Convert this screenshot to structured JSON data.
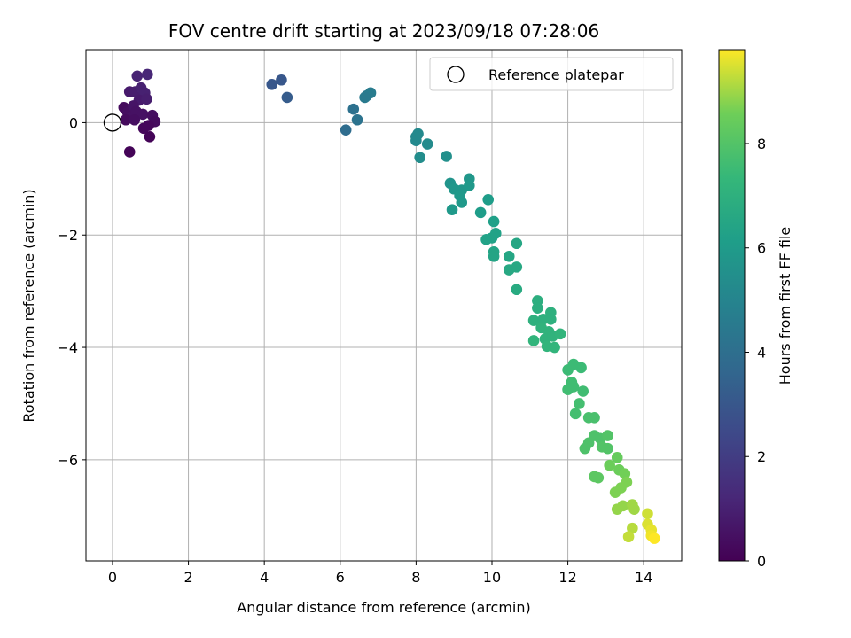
{
  "chart_data": {
    "type": "scatter",
    "title": "FOV centre drift starting at 2023/09/18 07:28:06",
    "xlabel": "Angular distance from reference (arcmin)",
    "ylabel": "Rotation from reference (arcmin)",
    "xlim": [
      -0.7,
      15
    ],
    "ylim": [
      -7.8,
      1.3
    ],
    "xticks": [
      0,
      2,
      4,
      6,
      8,
      10,
      12,
      14
    ],
    "yticks": [
      0,
      -2,
      -4,
      -6
    ],
    "grid": true,
    "legend": {
      "placement": "top-right",
      "entries": [
        "Reference platepar"
      ]
    },
    "reference_point": {
      "x": 0,
      "y": 0
    },
    "colorbar": {
      "label": "Hours from first FF file",
      "range": [
        0,
        9.8
      ],
      "ticks": [
        0,
        2,
        4,
        6,
        8
      ],
      "colormap": "viridis"
    },
    "points": [
      {
        "x": 0.3,
        "y": 0.27,
        "h": 0.3
      },
      {
        "x": 0.4,
        "y": 0.18,
        "h": 0.4
      },
      {
        "x": 0.5,
        "y": 0.1,
        "h": 0.5
      },
      {
        "x": 0.35,
        "y": 0.05,
        "h": 0.3
      },
      {
        "x": 0.45,
        "y": 0.55,
        "h": 0.8
      },
      {
        "x": 0.65,
        "y": 0.83,
        "h": 1.1
      },
      {
        "x": 0.92,
        "y": 0.86,
        "h": 1.2
      },
      {
        "x": 0.6,
        "y": 0.55,
        "h": 0.9
      },
      {
        "x": 0.75,
        "y": 0.62,
        "h": 1.0
      },
      {
        "x": 0.85,
        "y": 0.53,
        "h": 1.0
      },
      {
        "x": 0.7,
        "y": 0.4,
        "h": 0.8
      },
      {
        "x": 0.55,
        "y": 0.3,
        "h": 0.6
      },
      {
        "x": 0.9,
        "y": 0.42,
        "h": 0.9
      },
      {
        "x": 0.62,
        "y": 0.2,
        "h": 0.5
      },
      {
        "x": 0.8,
        "y": 0.15,
        "h": 0.5
      },
      {
        "x": 1.05,
        "y": 0.13,
        "h": 0.4
      },
      {
        "x": 1.12,
        "y": 0.02,
        "h": 0.3
      },
      {
        "x": 0.95,
        "y": -0.05,
        "h": 0.2
      },
      {
        "x": 0.82,
        "y": -0.1,
        "h": 0.2
      },
      {
        "x": 0.98,
        "y": -0.25,
        "h": 0.1
      },
      {
        "x": 0.45,
        "y": -0.52,
        "h": 0.1
      },
      {
        "x": 0.58,
        "y": 0.05,
        "h": 0.4
      },
      {
        "x": 4.2,
        "y": 0.68,
        "h": 3.0
      },
      {
        "x": 4.45,
        "y": 0.76,
        "h": 3.0
      },
      {
        "x": 4.6,
        "y": 0.45,
        "h": 3.2
      },
      {
        "x": 6.15,
        "y": -0.13,
        "h": 3.9
      },
      {
        "x": 6.35,
        "y": 0.24,
        "h": 4.1
      },
      {
        "x": 6.45,
        "y": 0.05,
        "h": 4.2
      },
      {
        "x": 6.7,
        "y": 0.48,
        "h": 4.5
      },
      {
        "x": 6.8,
        "y": 0.53,
        "h": 4.6
      },
      {
        "x": 6.65,
        "y": 0.45,
        "h": 4.5
      },
      {
        "x": 8.0,
        "y": -0.25,
        "h": 5.1
      },
      {
        "x": 8.05,
        "y": -0.2,
        "h": 5.2
      },
      {
        "x": 8.0,
        "y": -0.32,
        "h": 5.2
      },
      {
        "x": 8.3,
        "y": -0.38,
        "h": 5.3
      },
      {
        "x": 8.1,
        "y": -0.62,
        "h": 5.4
      },
      {
        "x": 8.8,
        "y": -0.6,
        "h": 5.5
      },
      {
        "x": 8.9,
        "y": -1.08,
        "h": 5.7
      },
      {
        "x": 9.0,
        "y": -1.18,
        "h": 5.8
      },
      {
        "x": 9.2,
        "y": -1.2,
        "h": 5.8
      },
      {
        "x": 9.4,
        "y": -1.0,
        "h": 5.8
      },
      {
        "x": 9.4,
        "y": -1.12,
        "h": 5.9
      },
      {
        "x": 9.2,
        "y": -1.42,
        "h": 5.9
      },
      {
        "x": 8.95,
        "y": -1.55,
        "h": 5.9
      },
      {
        "x": 9.15,
        "y": -1.3,
        "h": 5.9
      },
      {
        "x": 9.9,
        "y": -1.37,
        "h": 6.1
      },
      {
        "x": 9.7,
        "y": -1.6,
        "h": 6.1
      },
      {
        "x": 10.05,
        "y": -1.76,
        "h": 6.2
      },
      {
        "x": 10.0,
        "y": -2.05,
        "h": 6.3
      },
      {
        "x": 9.85,
        "y": -2.08,
        "h": 6.3
      },
      {
        "x": 10.1,
        "y": -1.97,
        "h": 6.3
      },
      {
        "x": 10.05,
        "y": -2.3,
        "h": 6.4
      },
      {
        "x": 10.05,
        "y": -2.38,
        "h": 6.4
      },
      {
        "x": 10.45,
        "y": -2.38,
        "h": 6.5
      },
      {
        "x": 10.65,
        "y": -2.15,
        "h": 6.5
      },
      {
        "x": 10.45,
        "y": -2.62,
        "h": 6.6
      },
      {
        "x": 10.65,
        "y": -2.57,
        "h": 6.6
      },
      {
        "x": 10.65,
        "y": -2.97,
        "h": 6.7
      },
      {
        "x": 11.2,
        "y": -3.17,
        "h": 6.9
      },
      {
        "x": 11.2,
        "y": -3.3,
        "h": 6.9
      },
      {
        "x": 11.55,
        "y": -3.38,
        "h": 7.0
      },
      {
        "x": 11.1,
        "y": -3.52,
        "h": 7.0
      },
      {
        "x": 11.35,
        "y": -3.5,
        "h": 7.0
      },
      {
        "x": 11.55,
        "y": -3.5,
        "h": 7.0
      },
      {
        "x": 11.3,
        "y": -3.65,
        "h": 7.1
      },
      {
        "x": 11.5,
        "y": -3.72,
        "h": 7.1
      },
      {
        "x": 11.4,
        "y": -3.85,
        "h": 7.1
      },
      {
        "x": 11.6,
        "y": -3.8,
        "h": 7.1
      },
      {
        "x": 11.8,
        "y": -3.76,
        "h": 7.2
      },
      {
        "x": 11.1,
        "y": -3.88,
        "h": 7.2
      },
      {
        "x": 11.45,
        "y": -3.98,
        "h": 7.2
      },
      {
        "x": 11.65,
        "y": -4.0,
        "h": 7.2
      },
      {
        "x": 12.0,
        "y": -4.4,
        "h": 7.5
      },
      {
        "x": 12.15,
        "y": -4.3,
        "h": 7.5
      },
      {
        "x": 12.35,
        "y": -4.36,
        "h": 7.5
      },
      {
        "x": 12.1,
        "y": -4.62,
        "h": 7.6
      },
      {
        "x": 12.15,
        "y": -4.7,
        "h": 7.6
      },
      {
        "x": 12.0,
        "y": -4.75,
        "h": 7.6
      },
      {
        "x": 12.4,
        "y": -4.78,
        "h": 7.6
      },
      {
        "x": 12.3,
        "y": -5.0,
        "h": 7.7
      },
      {
        "x": 12.2,
        "y": -5.18,
        "h": 7.7
      },
      {
        "x": 12.55,
        "y": -5.25,
        "h": 7.8
      },
      {
        "x": 12.7,
        "y": -5.25,
        "h": 7.8
      },
      {
        "x": 12.7,
        "y": -5.57,
        "h": 7.9
      },
      {
        "x": 12.85,
        "y": -5.62,
        "h": 7.9
      },
      {
        "x": 12.55,
        "y": -5.7,
        "h": 7.9
      },
      {
        "x": 12.45,
        "y": -5.8,
        "h": 7.9
      },
      {
        "x": 13.05,
        "y": -5.57,
        "h": 8.0
      },
      {
        "x": 12.9,
        "y": -5.77,
        "h": 8.0
      },
      {
        "x": 13.05,
        "y": -5.8,
        "h": 8.0
      },
      {
        "x": 12.7,
        "y": -6.3,
        "h": 8.2
      },
      {
        "x": 12.8,
        "y": -6.32,
        "h": 8.2
      },
      {
        "x": 13.3,
        "y": -5.96,
        "h": 8.4
      },
      {
        "x": 13.1,
        "y": -6.1,
        "h": 8.5
      },
      {
        "x": 13.35,
        "y": -6.18,
        "h": 8.5
      },
      {
        "x": 13.5,
        "y": -6.25,
        "h": 8.6
      },
      {
        "x": 13.55,
        "y": -6.4,
        "h": 8.7
      },
      {
        "x": 13.4,
        "y": -6.5,
        "h": 8.7
      },
      {
        "x": 13.25,
        "y": -6.58,
        "h": 8.7
      },
      {
        "x": 13.3,
        "y": -6.88,
        "h": 8.9
      },
      {
        "x": 13.45,
        "y": -6.82,
        "h": 8.9
      },
      {
        "x": 13.7,
        "y": -6.8,
        "h": 9.0
      },
      {
        "x": 13.75,
        "y": -6.88,
        "h": 9.0
      },
      {
        "x": 13.7,
        "y": -7.22,
        "h": 9.2
      },
      {
        "x": 13.6,
        "y": -7.37,
        "h": 9.3
      },
      {
        "x": 14.1,
        "y": -6.96,
        "h": 9.4
      },
      {
        "x": 14.1,
        "y": -7.15,
        "h": 9.5
      },
      {
        "x": 14.2,
        "y": -7.25,
        "h": 9.6
      },
      {
        "x": 14.2,
        "y": -7.35,
        "h": 9.7
      },
      {
        "x": 14.28,
        "y": -7.4,
        "h": 9.8
      }
    ]
  }
}
